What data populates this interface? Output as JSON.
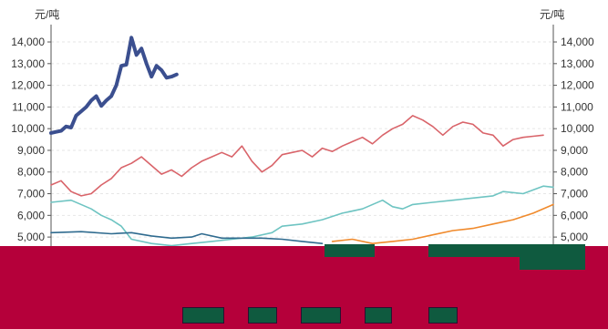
{
  "units": {
    "left": "元/吨",
    "right": "元/吨"
  },
  "colors": {
    "series_0": "#3b4f8f",
    "series_1": "#d9646a",
    "series_2": "#6ec4c2",
    "series_3": "#2f6b8f",
    "series_4": "#f08a2c",
    "occlusion": "#b5003a",
    "grid": "#e6e6e6",
    "axis": "#555555"
  },
  "chart_data": {
    "type": "line",
    "y_ticks": [
      5000,
      6000,
      7000,
      8000,
      9000,
      10000,
      11000,
      12000,
      13000,
      14000
    ],
    "y_tick_labels": [
      "5,000",
      "6,000",
      "7,000",
      "8,000",
      "9,000",
      "10,000",
      "11,000",
      "12,000",
      "13,000",
      "14,000"
    ],
    "ylim": [
      4500,
      14800
    ],
    "x_index_range": [
      0,
      100
    ],
    "grid": true,
    "series": [
      {
        "color": "#3b4f8f",
        "thick": true,
        "points": [
          [
            0,
            9800
          ],
          [
            1,
            9850
          ],
          [
            2,
            9900
          ],
          [
            3,
            10100
          ],
          [
            4,
            10050
          ],
          [
            5,
            10600
          ],
          [
            6,
            10800
          ],
          [
            7,
            11000
          ],
          [
            8,
            11300
          ],
          [
            9,
            11500
          ],
          [
            10,
            11050
          ],
          [
            11,
            11300
          ],
          [
            12,
            11500
          ],
          [
            13,
            12000
          ],
          [
            14,
            12900
          ],
          [
            15,
            12950
          ],
          [
            16,
            14200
          ],
          [
            17,
            13400
          ],
          [
            18,
            13700
          ],
          [
            19,
            13000
          ],
          [
            20,
            12400
          ],
          [
            21,
            12900
          ],
          [
            22,
            12700
          ],
          [
            23,
            12350
          ],
          [
            24,
            12400
          ],
          [
            25,
            12500
          ]
        ]
      },
      {
        "color": "#d9646a",
        "thick": false,
        "points": [
          [
            0,
            7400
          ],
          [
            2,
            7600
          ],
          [
            4,
            7100
          ],
          [
            6,
            6900
          ],
          [
            8,
            7000
          ],
          [
            10,
            7400
          ],
          [
            12,
            7700
          ],
          [
            14,
            8200
          ],
          [
            16,
            8400
          ],
          [
            18,
            8700
          ],
          [
            20,
            8300
          ],
          [
            22,
            7900
          ],
          [
            24,
            8100
          ],
          [
            26,
            7800
          ],
          [
            28,
            8200
          ],
          [
            30,
            8500
          ],
          [
            32,
            8700
          ],
          [
            34,
            8900
          ],
          [
            36,
            8700
          ],
          [
            38,
            9200
          ],
          [
            40,
            8500
          ],
          [
            42,
            8000
          ],
          [
            44,
            8300
          ],
          [
            46,
            8800
          ],
          [
            48,
            8900
          ],
          [
            50,
            9000
          ],
          [
            52,
            8700
          ],
          [
            54,
            9100
          ],
          [
            56,
            8950
          ],
          [
            58,
            9200
          ],
          [
            60,
            9400
          ],
          [
            62,
            9600
          ],
          [
            64,
            9300
          ],
          [
            66,
            9700
          ],
          [
            68,
            10000
          ],
          [
            70,
            10200
          ],
          [
            72,
            10600
          ],
          [
            74,
            10400
          ],
          [
            76,
            10100
          ],
          [
            78,
            9700
          ],
          [
            80,
            10100
          ],
          [
            82,
            10300
          ],
          [
            84,
            10200
          ],
          [
            86,
            9800
          ],
          [
            88,
            9700
          ],
          [
            90,
            9200
          ],
          [
            92,
            9500
          ],
          [
            94,
            9600
          ],
          [
            96,
            9650
          ],
          [
            98,
            9700
          ]
        ]
      },
      {
        "color": "#6ec4c2",
        "thick": false,
        "points": [
          [
            0,
            6600
          ],
          [
            4,
            6700
          ],
          [
            8,
            6300
          ],
          [
            10,
            6000
          ],
          [
            12,
            5800
          ],
          [
            14,
            5500
          ],
          [
            16,
            4900
          ],
          [
            20,
            4700
          ],
          [
            24,
            4600
          ],
          [
            28,
            4700
          ],
          [
            32,
            4800
          ],
          [
            36,
            4900
          ],
          [
            40,
            5000
          ],
          [
            44,
            5200
          ],
          [
            46,
            5500
          ],
          [
            50,
            5600
          ],
          [
            54,
            5800
          ],
          [
            58,
            6100
          ],
          [
            62,
            6300
          ],
          [
            66,
            6700
          ],
          [
            68,
            6400
          ],
          [
            70,
            6300
          ],
          [
            72,
            6500
          ],
          [
            76,
            6600
          ],
          [
            80,
            6700
          ],
          [
            84,
            6800
          ],
          [
            88,
            6900
          ],
          [
            90,
            7100
          ],
          [
            94,
            7000
          ],
          [
            98,
            7350
          ],
          [
            100,
            7300
          ]
        ]
      },
      {
        "color": "#2f6b8f",
        "thick": false,
        "points": [
          [
            0,
            5200
          ],
          [
            6,
            5250
          ],
          [
            12,
            5150
          ],
          [
            16,
            5200
          ],
          [
            20,
            5050
          ],
          [
            24,
            4950
          ],
          [
            28,
            5000
          ],
          [
            30,
            5150
          ],
          [
            34,
            4950
          ],
          [
            38,
            4950
          ],
          [
            42,
            4950
          ],
          [
            46,
            4900
          ],
          [
            50,
            4800
          ],
          [
            54,
            4700
          ]
        ]
      },
      {
        "color": "#f08a2c",
        "thick": false,
        "points": [
          [
            56,
            4800
          ],
          [
            60,
            4900
          ],
          [
            64,
            4700
          ],
          [
            68,
            4800
          ],
          [
            72,
            4900
          ],
          [
            76,
            5100
          ],
          [
            80,
            5300
          ],
          [
            84,
            5400
          ],
          [
            88,
            5600
          ],
          [
            92,
            5800
          ],
          [
            96,
            6100
          ],
          [
            100,
            6500
          ]
        ]
      }
    ]
  }
}
